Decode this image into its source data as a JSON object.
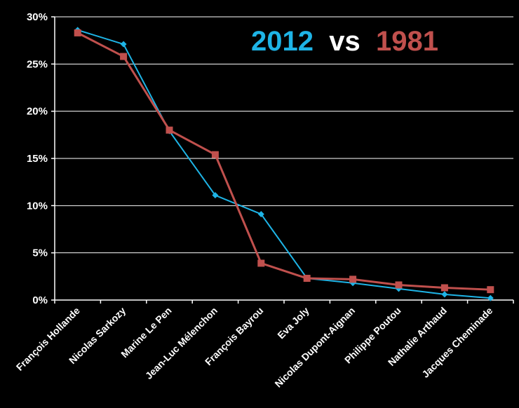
{
  "chart_data": {
    "type": "line",
    "title": {
      "part1": "2012",
      "part2": " vs ",
      "part3": "1981"
    },
    "xlabel": "",
    "ylabel": "",
    "categories": [
      "François Hollande",
      "Nicolas Sarkozy",
      "Marine Le Pen",
      "Jean-Luc Mélenchon",
      "François Bayrou",
      "Eva Joly",
      "Nicolas Dupont-Aignan",
      "Philippe Poutou",
      "Nathalie Arthaud",
      "Jacques Cheminade"
    ],
    "y_ticks": [
      "0%",
      "5%",
      "10%",
      "15%",
      "20%",
      "25%",
      "30%"
    ],
    "ylim": [
      0,
      30
    ],
    "grid": true,
    "series": [
      {
        "values": [
          28.6,
          27.1,
          17.9,
          11.1,
          9.1,
          2.3,
          1.8,
          1.2,
          0.6,
          0.2
        ],
        "color": "#1eb4e6",
        "marker": "diamond"
      },
      {
        "values": [
          28.3,
          25.8,
          18.0,
          15.4,
          3.9,
          2.3,
          2.2,
          1.6,
          1.3,
          1.1
        ],
        "color": "#c0504d",
        "marker": "square"
      }
    ],
    "colors": {
      "background": "#000000",
      "text": "#ffffff",
      "grid": "#ffffff",
      "title_2012": "#1eb4e6",
      "title_vs": "#ffffff",
      "title_1981": "#c0504d"
    }
  }
}
